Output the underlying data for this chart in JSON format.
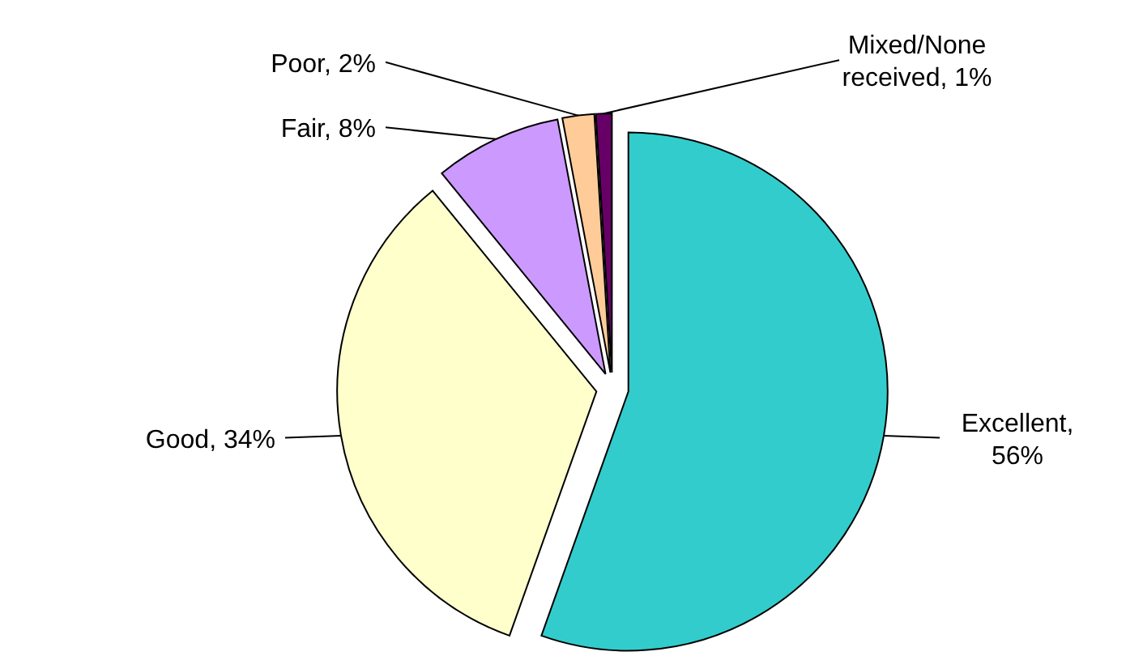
{
  "chart_data": {
    "type": "pie",
    "categories": [
      "Excellent, 56%",
      "Good, 34%",
      "Fair, 8%",
      "Poor, 2%",
      "Mixed/None received, 1%"
    ],
    "values": [
      56,
      34,
      8,
      2,
      1
    ],
    "colors": [
      "#33cccc",
      "#ffffcc",
      "#cc99ff",
      "#ffcc99",
      "#660066"
    ]
  }
}
